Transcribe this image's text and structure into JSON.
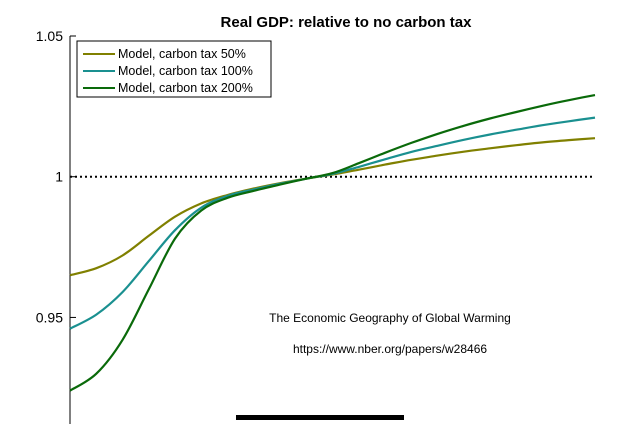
{
  "chart_data": {
    "type": "line",
    "title": "Real GDP: relative to no carbon tax",
    "xlabel": "",
    "ylabel": "",
    "ylim": [
      0.91,
      1.05
    ],
    "xlim": [
      0,
      1
    ],
    "yticks": [
      0.95,
      1,
      1.05
    ],
    "ytick_labels": [
      "0.95",
      "1",
      "1.05"
    ],
    "reference_line": {
      "y": 1,
      "style": "dotted"
    },
    "legend_position": "top-left",
    "x": [
      0.0,
      0.05,
      0.1,
      0.15,
      0.2,
      0.25,
      0.3,
      0.35,
      0.4,
      0.45,
      0.5,
      0.55,
      0.6,
      0.65,
      0.7,
      0.75,
      0.8,
      0.85,
      0.9,
      0.95,
      1.0
    ],
    "series": [
      {
        "name": "Model, carbon tax 50%",
        "color": "#808000",
        "values": [
          0.965,
          0.9675,
          0.972,
          0.979,
          0.9858,
          0.9905,
          0.9935,
          0.9958,
          0.9977,
          0.9993,
          1.0008,
          1.0025,
          1.0043,
          1.006,
          1.0075,
          1.0089,
          1.0101,
          1.0112,
          1.0122,
          1.013,
          1.0137
        ]
      },
      {
        "name": "Model, carbon tax 100%",
        "color": "#1a9090",
        "values": [
          0.946,
          0.951,
          0.959,
          0.97,
          0.981,
          0.989,
          0.9932,
          0.9955,
          0.9975,
          0.9993,
          1.001,
          1.0035,
          1.0062,
          1.0088,
          1.011,
          1.0131,
          1.015,
          1.0167,
          1.0183,
          1.0197,
          1.021
        ]
      },
      {
        "name": "Model, carbon tax 200%",
        "color": "#0a6a0a",
        "values": [
          0.924,
          0.93,
          0.942,
          0.96,
          0.978,
          0.988,
          0.9925,
          0.995,
          0.9972,
          0.9993,
          1.0013,
          1.0048,
          1.0085,
          1.012,
          1.0152,
          1.0181,
          1.0207,
          1.023,
          1.0252,
          1.0272,
          1.029
        ]
      }
    ],
    "annotations": [
      "The Economic Geography of Global Warming",
      "https://www.nber.org/papers/w28466"
    ]
  }
}
